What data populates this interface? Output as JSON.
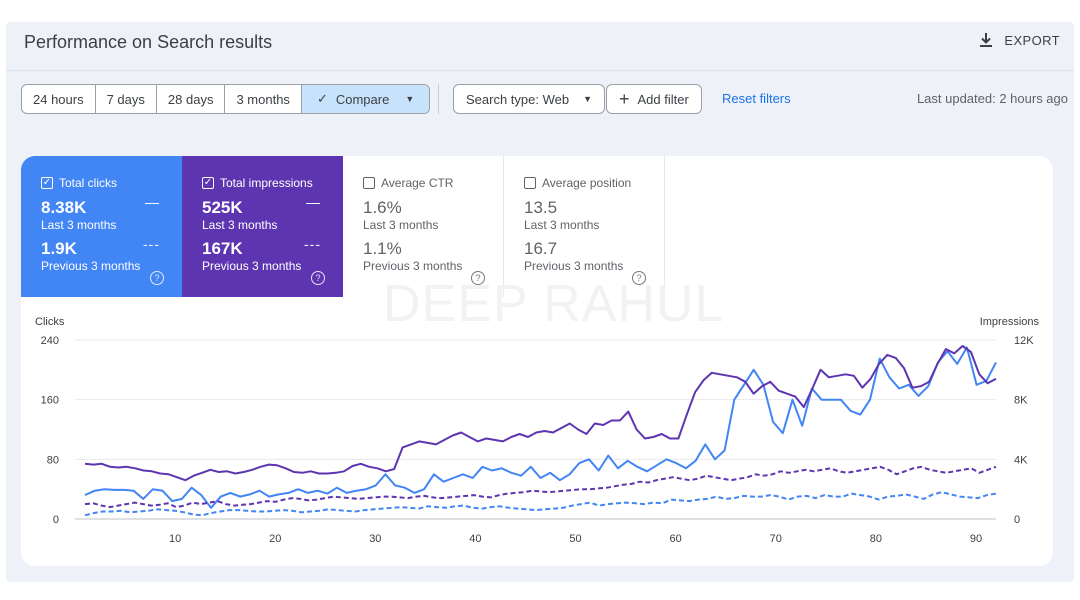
{
  "header": {
    "title": "Performance on Search results",
    "export_label": "EXPORT"
  },
  "toolbar": {
    "ranges": [
      "24 hours",
      "7 days",
      "28 days",
      "3 months"
    ],
    "compare_label": "Compare",
    "search_type_label": "Search type: Web",
    "add_filter_label": "Add filter",
    "reset_label": "Reset filters",
    "last_updated": "Last updated: 2 hours ago"
  },
  "metrics": [
    {
      "title": "Total clicks",
      "checked": true,
      "value": "8.38K",
      "period": "Last 3 months",
      "prev_value": "1.9K",
      "prev_period": "Previous 3 months"
    },
    {
      "title": "Total impressions",
      "checked": true,
      "value": "525K",
      "period": "Last 3 months",
      "prev_value": "167K",
      "prev_period": "Previous 3 months"
    },
    {
      "title": "Average CTR",
      "checked": false,
      "value": "1.6%",
      "period": "Last 3 months",
      "prev_value": "1.1%",
      "prev_period": "Previous 3 months"
    },
    {
      "title": "Average position",
      "checked": false,
      "value": "13.5",
      "period": "Last 3 months",
      "prev_value": "16.7",
      "prev_period": "Previous 3 months"
    }
  ],
  "watermark": "DEEP RAHUL",
  "colors": {
    "clicks": "#4285f4",
    "impressions": "#5e35b1",
    "accent": "#1a73e8"
  },
  "chart_data": {
    "type": "line",
    "left_axis_label": "Clicks",
    "right_axis_label": "Impressions",
    "left_ticks": [
      "0",
      "80",
      "160",
      "240"
    ],
    "right_ticks": [
      "0",
      "4K",
      "8K",
      "12K"
    ],
    "x_ticks": [
      "10",
      "20",
      "30",
      "40",
      "50",
      "60",
      "70",
      "80",
      "90"
    ],
    "ylim_left": [
      0,
      240
    ],
    "ylim_right": [
      0,
      12000
    ],
    "xlim": [
      0,
      92
    ],
    "series": [
      {
        "axis": "left",
        "style": "solid",
        "color": "#4285f4",
        "values": [
          32,
          38,
          40,
          39,
          39,
          38,
          27,
          40,
          38,
          24,
          27,
          42,
          32,
          15,
          30,
          35,
          30,
          33,
          38,
          30,
          33,
          35,
          40,
          35,
          38,
          34,
          42,
          35,
          38,
          40,
          45,
          60,
          45,
          42,
          35,
          40,
          60,
          50,
          55,
          60,
          55,
          70,
          65,
          68,
          62,
          58,
          70,
          55,
          62,
          52,
          60,
          75,
          80,
          65,
          85,
          68,
          78,
          70,
          64,
          72,
          80,
          75,
          68,
          78,
          100,
          80,
          92,
          160,
          180,
          200,
          180,
          130,
          115,
          160,
          125,
          175,
          160,
          160,
          160,
          145,
          140,
          160,
          215,
          190,
          175,
          180,
          165,
          178,
          210,
          225,
          208,
          230,
          180,
          185,
          210
        ]
      },
      {
        "axis": "right",
        "style": "solid",
        "color": "#5e35b1",
        "values": [
          3700,
          3650,
          3700,
          3500,
          3450,
          3500,
          3400,
          3250,
          3200,
          3050,
          3000,
          2800,
          2600,
          2900,
          3100,
          3300,
          3150,
          3200,
          3050,
          3150,
          3300,
          3500,
          3650,
          3600,
          3400,
          3150,
          3100,
          3200,
          3050,
          3050,
          3100,
          3200,
          3550,
          3700,
          3500,
          3400,
          3200,
          3350,
          4800,
          5000,
          5200,
          5100,
          5000,
          5300,
          5600,
          5800,
          5500,
          5200,
          5400,
          5300,
          5200,
          5500,
          5700,
          5500,
          5800,
          5900,
          5800,
          6100,
          6400,
          6000,
          5700,
          6400,
          6300,
          6600,
          6600,
          7200,
          6000,
          5400,
          5500,
          5700,
          5400,
          5400,
          7000,
          8500,
          9300,
          9800,
          9700,
          9600,
          9500,
          9200,
          8400,
          8900,
          9200,
          8600,
          8400,
          8200,
          7500,
          8700,
          10000,
          9500,
          9600,
          9700,
          9600,
          8800,
          9400,
          10400,
          11000,
          10800,
          10100,
          8800,
          8900,
          9200,
          10400,
          11400,
          11100,
          11600,
          11200,
          9700,
          9100,
          9400
        ]
      },
      {
        "axis": "left",
        "style": "dashed",
        "color": "#4285f4",
        "values": [
          5,
          8,
          10,
          10,
          11,
          9,
          10,
          11,
          13,
          12,
          11,
          9,
          6,
          5,
          8,
          10,
          12,
          12,
          11,
          10,
          10,
          11,
          12,
          11,
          9,
          10,
          11,
          13,
          12,
          11,
          10,
          12,
          13,
          14,
          15,
          16,
          15,
          14,
          17,
          16,
          15,
          17,
          18,
          15,
          14,
          16,
          17,
          15,
          14,
          13,
          12,
          13,
          14,
          15,
          18,
          20,
          22,
          18,
          20,
          21,
          22,
          21,
          20,
          22,
          21,
          26,
          25,
          24,
          26,
          27,
          30,
          27,
          28,
          31,
          30,
          30,
          32,
          30,
          26,
          30,
          31,
          28,
          32,
          30,
          30,
          34,
          32,
          30,
          26,
          30,
          31,
          33,
          30,
          27,
          33,
          36,
          33,
          30,
          29,
          28,
          32,
          34
        ]
      },
      {
        "axis": "right",
        "style": "dashed",
        "color": "#5e35b1",
        "values": [
          1000,
          1050,
          900,
          800,
          900,
          1000,
          1100,
          1000,
          900,
          950,
          1050,
          800,
          900,
          1100,
          1000,
          1100,
          1200,
          1000,
          900,
          950,
          1000,
          1100,
          1200,
          1150,
          1300,
          1400,
          1350,
          1250,
          1300,
          1400,
          1500,
          1450,
          1400,
          1350,
          1400,
          1450,
          1500,
          1500,
          1450,
          1400,
          1500,
          1550,
          1450,
          1400,
          1450,
          1500,
          1550,
          1600,
          1500,
          1450,
          1600,
          1700,
          1750,
          1800,
          1900,
          1850,
          1800,
          1850,
          1900,
          1950,
          2000,
          2000,
          2050,
          2100,
          2200,
          2300,
          2350,
          2500,
          2450,
          2600,
          2700,
          2800,
          2700,
          2600,
          2700,
          2900,
          2800,
          2700,
          2600,
          2700,
          2800,
          3000,
          2900,
          3000,
          3200,
          3100,
          3200,
          3300,
          3200,
          3300,
          3400,
          3200,
          3100,
          3200,
          3300,
          3400,
          3500,
          3300,
          3000,
          3200,
          3400,
          3500,
          3300,
          3200,
          3100,
          3200,
          3300,
          3400,
          3100,
          3300,
          3500
        ]
      }
    ]
  }
}
